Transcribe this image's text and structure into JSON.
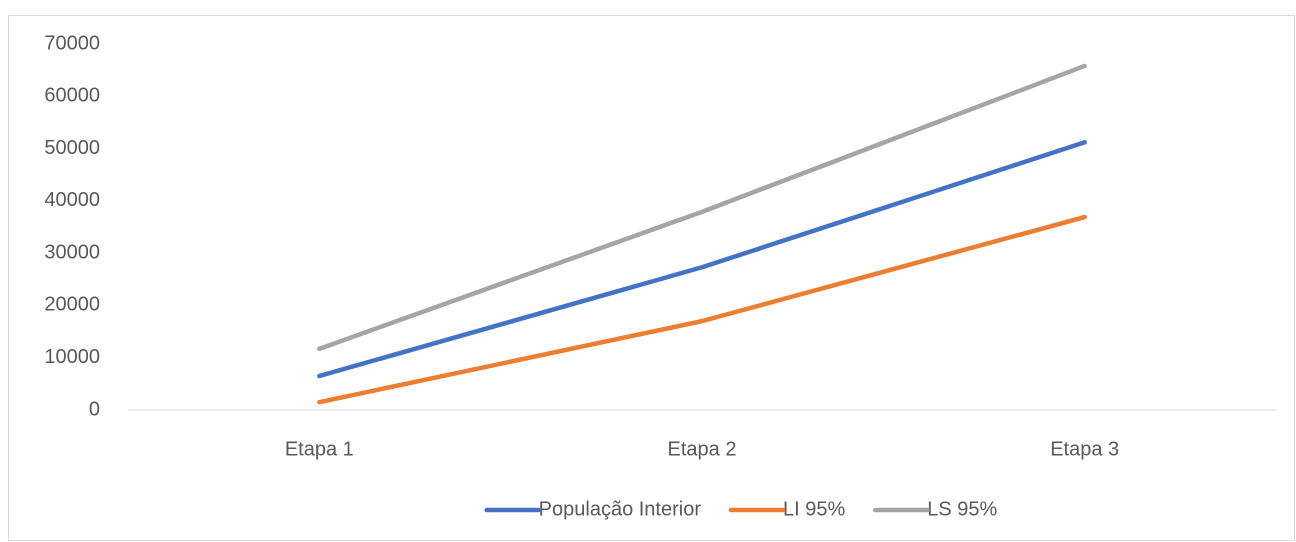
{
  "chart_data": {
    "type": "line",
    "categories": [
      "Etapa 1",
      "Etapa 2",
      "Etapa 3"
    ],
    "series": [
      {
        "name": "População Interior",
        "color": "#4472c4",
        "values": [
          6500,
          27300,
          51200
        ]
      },
      {
        "name": "LI 95%",
        "color": "#ed7d31",
        "values": [
          1500,
          17000,
          36900
        ]
      },
      {
        "name": "LS 95%",
        "color": "#a5a5a5",
        "values": [
          11700,
          37900,
          65800
        ]
      }
    ],
    "ylim": [
      0,
      70000
    ],
    "yticks": [
      0,
      10000,
      20000,
      30000,
      40000,
      50000,
      60000,
      70000
    ],
    "grid": false,
    "legend": "bottom"
  }
}
